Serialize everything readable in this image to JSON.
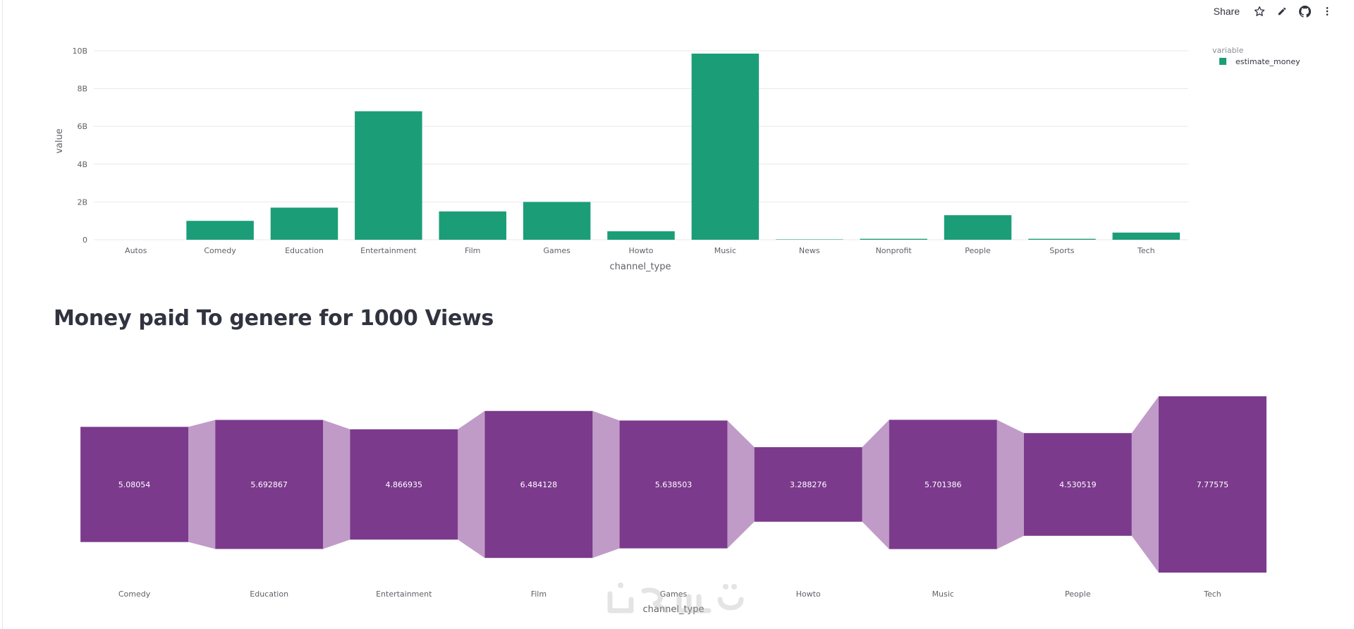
{
  "toolbar": {
    "share_label": "Share",
    "icons": [
      "star-icon",
      "edit-pencil-icon",
      "github-icon",
      "more-vertical-icon"
    ]
  },
  "section_title": "Money paid To genere for 1000 Views",
  "colors": {
    "bar": "#1b9e77",
    "node": "#7b3a8c",
    "link": "#c09bc8",
    "grid": "#e8e8eb"
  },
  "chart_data": [
    {
      "type": "bar",
      "categories": [
        "Autos",
        "Comedy",
        "Education",
        "Entertainment",
        "Film",
        "Games",
        "Howto",
        "Music",
        "News",
        "Nonprofit",
        "People",
        "Sports",
        "Tech"
      ],
      "series": [
        {
          "name": "estimate_money",
          "values": [
            0,
            1000000000,
            1700000000,
            6800000000,
            1500000000,
            2000000000,
            450000000,
            9850000000,
            20000000,
            50000000,
            1300000000,
            50000000,
            380000000
          ]
        }
      ],
      "yticks": [
        0,
        2000000000,
        4000000000,
        6000000000,
        8000000000,
        10000000000
      ],
      "ytick_labels": [
        "0",
        "2B",
        "4B",
        "6B",
        "8B",
        "10B"
      ],
      "ylim": [
        0,
        10000000000
      ],
      "xlabel": "channel_type",
      "ylabel": "value",
      "legend_title": "variable",
      "legend_position": "top-right",
      "grid": true
    },
    {
      "type": "funnel",
      "categories": [
        "Comedy",
        "Education",
        "Entertainment",
        "Film",
        "Games",
        "Howto",
        "Music",
        "People",
        "Tech"
      ],
      "values": [
        5.08054,
        5.692867,
        4.866935,
        6.484128,
        5.638503,
        3.288276,
        5.701386,
        4.530519,
        7.77575
      ],
      "value_labels": [
        "5.08054",
        "5.692867",
        "4.866935",
        "6.484128",
        "5.638503",
        "3.288276",
        "5.701386",
        "4.530519",
        "7.77575"
      ],
      "xlabel": "channel_type"
    }
  ]
}
